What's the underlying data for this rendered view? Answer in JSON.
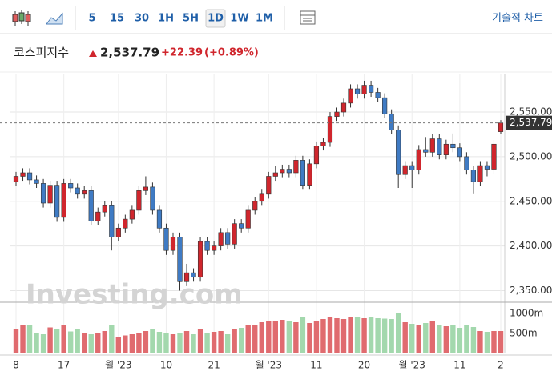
{
  "toolbar": {
    "intervals": [
      "5",
      "15",
      "30",
      "1H",
      "5H",
      "1D",
      "1W",
      "1M"
    ],
    "selected": "1D",
    "link": "기술적 차트"
  },
  "header": {
    "name": "코스피지수",
    "price": "2,537.79",
    "change": "+22.39",
    "change_pct": "(+0.89%)"
  },
  "chart_data": {
    "type": "candlestick",
    "watermark": "Investing.com",
    "categories": [
      "8",
      null,
      null,
      null,
      null,
      null,
      null,
      "17",
      null,
      null,
      null,
      null,
      null,
      null,
      null,
      "월 '23",
      null,
      null,
      null,
      null,
      null,
      null,
      "10",
      null,
      null,
      null,
      null,
      null,
      null,
      "21",
      null,
      null,
      null,
      null,
      null,
      null,
      null,
      "월 '23",
      null,
      null,
      null,
      null,
      null,
      null,
      "11",
      null,
      null,
      null,
      null,
      null,
      null,
      "20",
      null,
      null,
      null,
      null,
      null,
      null,
      "월 '23",
      null,
      null,
      null,
      null,
      null,
      null,
      "11",
      null,
      null,
      null,
      null,
      null,
      "2"
    ],
    "open": [
      2472,
      2478,
      2482,
      2474,
      2470,
      2448,
      2468,
      2432,
      2470,
      2465,
      2458,
      2462,
      2428,
      2438,
      2445,
      2410,
      2420,
      2430,
      2440,
      2462,
      2466,
      2440,
      2420,
      2395,
      2410,
      2360,
      2370,
      2365,
      2405,
      2395,
      2400,
      2415,
      2402,
      2425,
      2420,
      2440,
      2450,
      2458,
      2478,
      2482,
      2486,
      2482,
      2496,
      2468,
      2492,
      2512,
      2516,
      2545,
      2550,
      2560,
      2576,
      2570,
      2580,
      2572,
      2566,
      2548,
      2530,
      2480,
      2490,
      2485,
      2508,
      2505,
      2520,
      2502,
      2514,
      2510,
      2500,
      2485,
      2472,
      2490,
      2486,
      2528
    ],
    "high": [
      2483,
      2487,
      2487,
      2479,
      2475,
      2473,
      2473,
      2475,
      2475,
      2470,
      2467,
      2467,
      2443,
      2450,
      2450,
      2425,
      2435,
      2445,
      2467,
      2478,
      2471,
      2445,
      2425,
      2415,
      2415,
      2380,
      2375,
      2410,
      2410,
      2405,
      2420,
      2420,
      2430,
      2430,
      2445,
      2455,
      2463,
      2483,
      2490,
      2491,
      2491,
      2501,
      2501,
      2497,
      2517,
      2521,
      2550,
      2555,
      2565,
      2581,
      2581,
      2585,
      2585,
      2577,
      2571,
      2553,
      2535,
      2495,
      2495,
      2513,
      2522,
      2525,
      2525,
      2519,
      2526,
      2515,
      2505,
      2490,
      2495,
      2495,
      2519,
      2541
    ],
    "low": [
      2467,
      2473,
      2469,
      2465,
      2443,
      2443,
      2427,
      2427,
      2460,
      2453,
      2453,
      2423,
      2423,
      2433,
      2395,
      2405,
      2415,
      2425,
      2435,
      2457,
      2435,
      2415,
      2390,
      2390,
      2350,
      2355,
      2360,
      2360,
      2390,
      2390,
      2395,
      2397,
      2397,
      2415,
      2415,
      2435,
      2445,
      2453,
      2473,
      2477,
      2477,
      2477,
      2463,
      2463,
      2487,
      2507,
      2511,
      2540,
      2545,
      2555,
      2565,
      2565,
      2567,
      2561,
      2543,
      2525,
      2465,
      2475,
      2465,
      2480,
      2500,
      2500,
      2497,
      2497,
      2505,
      2495,
      2480,
      2458,
      2467,
      2478,
      2481,
      2525
    ],
    "close": [
      2478,
      2482,
      2474,
      2470,
      2448,
      2468,
      2432,
      2470,
      2465,
      2458,
      2462,
      2428,
      2438,
      2445,
      2410,
      2420,
      2430,
      2440,
      2462,
      2466,
      2440,
      2420,
      2395,
      2410,
      2360,
      2370,
      2365,
      2405,
      2395,
      2400,
      2415,
      2402,
      2425,
      2420,
      2440,
      2450,
      2458,
      2478,
      2482,
      2486,
      2482,
      2496,
      2468,
      2492,
      2512,
      2516,
      2545,
      2550,
      2560,
      2576,
      2570,
      2580,
      2572,
      2566,
      2548,
      2530,
      2480,
      2490,
      2485,
      2508,
      2505,
      2520,
      2502,
      2514,
      2510,
      2500,
      2485,
      2472,
      2490,
      2486,
      2514,
      2537.79
    ],
    "volume": [
      600,
      700,
      720,
      500,
      480,
      650,
      600,
      700,
      550,
      620,
      500,
      480,
      520,
      560,
      720,
      400,
      450,
      480,
      500,
      560,
      620,
      540,
      500,
      480,
      520,
      560,
      480,
      620,
      500,
      540,
      560,
      480,
      600,
      640,
      700,
      720,
      780,
      800,
      820,
      840,
      800,
      780,
      900,
      760,
      820,
      860,
      900,
      880,
      860,
      900,
      920,
      880,
      900,
      880,
      870,
      860,
      1000,
      780,
      740,
      700,
      760,
      800,
      720,
      680,
      700,
      640,
      720,
      660,
      560,
      540,
      560,
      560
    ],
    "ylim": [
      2337,
      2593
    ],
    "yticks": [
      {
        "value": 2350,
        "label": "2,350.00"
      },
      {
        "value": 2400,
        "label": "2,400.00"
      },
      {
        "value": 2450,
        "label": "2,450.00"
      },
      {
        "value": 2500,
        "label": "2,500.00"
      },
      {
        "value": 2550,
        "label": "2,550.00"
      }
    ],
    "vlim": [
      0,
      1280
    ],
    "vticks": [
      {
        "value": 500,
        "label": "500m"
      },
      {
        "value": 1000,
        "label": "1000m"
      }
    ],
    "up_color": "#d0262d",
    "down_color": "#3f7bc4",
    "vol_up_color": "#e06b6f",
    "vol_down_color": "#a3d8ad",
    "grid": true
  }
}
